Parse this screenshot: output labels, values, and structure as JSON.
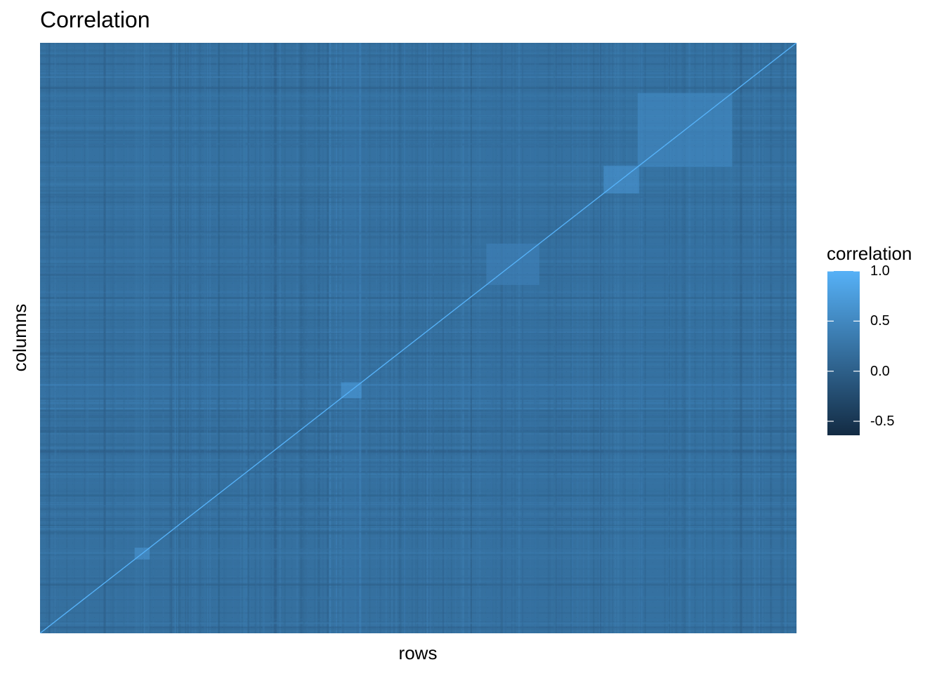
{
  "chart_data": {
    "type": "heatmap",
    "title": "Correlation",
    "xlabel": "rows",
    "ylabel": "columns",
    "x_tick_labels": [],
    "y_tick_labels": [],
    "legend": {
      "title": "correlation",
      "placement": "right",
      "ticks": [
        {
          "value": 1.0,
          "label": "1.0"
        },
        {
          "value": 0.5,
          "label": "0.5"
        },
        {
          "value": 0.0,
          "label": "0.0"
        },
        {
          "value": -0.5,
          "label": "-0.5"
        }
      ],
      "range": [
        -0.64,
        1.0
      ]
    },
    "colors": {
      "low": "#132B43",
      "high": "#56B1F7",
      "background": "#ffffff"
    },
    "diagonal_value": 1.0,
    "typical_offdiagonal_value": 0.2,
    "matrix_size_approx": 1000,
    "notable_blocks": [
      {
        "row_range": [
          745,
          792
        ],
        "col_range": [
          745,
          792
        ],
        "value": 0.7
      },
      {
        "row_range": [
          790,
          915
        ],
        "col_range": [
          790,
          915
        ],
        "value": 0.55
      },
      {
        "row_range": [
          398,
          425
        ],
        "col_range": [
          398,
          425
        ],
        "value": 0.75
      },
      {
        "row_range": [
          125,
          145
        ],
        "col_range": [
          125,
          145
        ],
        "value": 0.7
      },
      {
        "row_range": [
          590,
          660
        ],
        "col_range": [
          590,
          660
        ],
        "value": 0.45
      }
    ],
    "grid": false
  }
}
